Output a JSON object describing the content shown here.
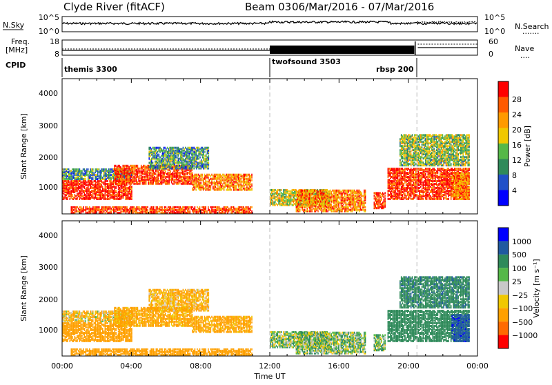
{
  "header": {
    "title": "Clyde River (fitACF)",
    "beam": "Beam 03",
    "date_range": "06/Mar/2016 - 07/Mar/2016"
  },
  "nsky_panel": {
    "left_label": "N.Sky",
    "left_ticks": [
      "10^5",
      "10^0"
    ],
    "right_ticks": [
      "10^5",
      "10^0"
    ],
    "right_label": "N.Search",
    "right_label_line": "......."
  },
  "freq_panel": {
    "left_label_lines": [
      "Freq.",
      "[MHz]"
    ],
    "left_ticks": [
      "18",
      "8"
    ],
    "right_ticks": [
      "60",
      "0"
    ],
    "right_label": "Nave",
    "right_label_line": "...."
  },
  "cpid_panel": {
    "label": "CPID",
    "modes": [
      {
        "name": "themis 3300",
        "start_hour": 0
      },
      {
        "name": "twofsound 3503",
        "start_hour": 12
      },
      {
        "name": "rbsp 200",
        "start_hour": 20.5
      }
    ]
  },
  "power_panel": {
    "ylabel": "Slant Range [km]",
    "yticks": [
      "4000",
      "3000",
      "2000",
      "1000"
    ],
    "colorbar_label": "Power [dB]",
    "colorbar_ticks": [
      "28",
      "24",
      "20",
      "16",
      "12",
      "8",
      "4"
    ],
    "colors": [
      "#0000ff",
      "#2050c8",
      "#2f8a5a",
      "#55b848",
      "#f0c800",
      "#ff9a00",
      "#ff5a00",
      "#ff0000"
    ]
  },
  "velocity_panel": {
    "ylabel": "Slant Range [km]",
    "yticks": [
      "4000",
      "3000",
      "2000",
      "1000"
    ],
    "colorbar_label": "Velocity [m s⁻¹]",
    "colorbar_ticks": [
      "1000",
      "500",
      "100",
      "25",
      "−25",
      "−100",
      "−500",
      "−1000"
    ],
    "colors": [
      "#ff0000",
      "#ff6a00",
      "#ffa000",
      "#f0c800",
      "#c8c8c8",
      "#55b848",
      "#2f8a5a",
      "#205aa0",
      "#0000ff"
    ]
  },
  "xaxis": {
    "ticks": [
      "00:00",
      "04:00",
      "08:00",
      "12:00",
      "16:00",
      "20:00",
      "00:00"
    ],
    "label": "Time UT"
  },
  "chart_data": {
    "type": "heatmap",
    "title": "Clyde River (fitACF)",
    "subtitle": "Beam 03 06/Mar/2016 - 07/Mar/2016",
    "x_range_hours": [
      0,
      24
    ],
    "y_range_km": [
      180,
      4600
    ],
    "xlabel": "Time UT",
    "ylabel": "Slant Range [km]",
    "power_scale_db": [
      0,
      30
    ],
    "velocity_scale_ms": [
      -1000,
      1000
    ],
    "mode_change_hours": [
      12,
      20.5
    ],
    "regions": [
      {
        "t0": 0,
        "t1": 4,
        "r0": 700,
        "r1": 1300,
        "power": 28,
        "velocity": -300
      },
      {
        "t0": 0,
        "t1": 4,
        "r0": 1350,
        "r1": 1700,
        "power": 10,
        "velocity": -100
      },
      {
        "t0": 3,
        "t1": 7.5,
        "r0": 1200,
        "r1": 1800,
        "power": 26,
        "velocity": -200
      },
      {
        "t0": 5,
        "t1": 8.5,
        "r0": 1700,
        "r1": 2400,
        "power": 10,
        "velocity": -150
      },
      {
        "t0": 7.5,
        "t1": 11,
        "r0": 1000,
        "r1": 1500,
        "power": 22,
        "velocity": -200
      },
      {
        "t0": 0.5,
        "t1": 11,
        "r0": 250,
        "r1": 450,
        "power": 26,
        "velocity": -250
      },
      {
        "t0": 12,
        "t1": 15.5,
        "r0": 500,
        "r1": 1000,
        "power": 16,
        "velocity": 50
      },
      {
        "t0": 13.5,
        "t1": 17.5,
        "r0": 300,
        "r1": 1000,
        "power": 22,
        "velocity": 60
      },
      {
        "t0": 18,
        "t1": 18.7,
        "r0": 400,
        "r1": 900,
        "power": 26,
        "velocity": 80
      },
      {
        "t0": 18.8,
        "t1": 23.5,
        "r0": 700,
        "r1": 1700,
        "power": 27,
        "velocity": 300
      },
      {
        "t0": 19.5,
        "t1": 23.5,
        "r0": 1800,
        "r1": 2800,
        "power": 14,
        "velocity": 400
      },
      {
        "t0": 22.5,
        "t1": 23.5,
        "r0": 700,
        "r1": 1600,
        "power": 22,
        "velocity": 900
      }
    ]
  }
}
